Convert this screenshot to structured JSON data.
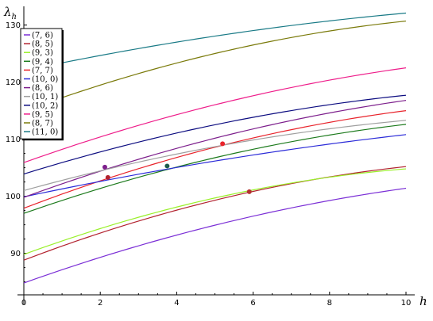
{
  "chart_data": {
    "type": "line",
    "xlabel": "h",
    "ylabel_main": "λ",
    "ylabel_sub": "h",
    "xlim": [
      0,
      10
    ],
    "ylim": [
      83,
      133
    ],
    "x_ticks": [
      0,
      2,
      4,
      6,
      8,
      10
    ],
    "y_ticks": [
      90,
      100,
      110,
      120,
      130
    ],
    "legend_position": "top-left",
    "series": [
      {
        "name": "(7, 6)",
        "color": "#7b2fd6",
        "y0": 84.8,
        "y10": 101.4,
        "curve": 0.22
      },
      {
        "name": "(8, 5)",
        "color": "#b2222e",
        "y0": 88.8,
        "y10": 105.2,
        "curve": 0.28
      },
      {
        "name": "(9, 3)",
        "color": "#9af02a",
        "y0": 89.8,
        "y10": 104.8,
        "curve": 0.32
      },
      {
        "name": "(9, 4)",
        "color": "#1c7a1c",
        "y0": 97.0,
        "y10": 112.6,
        "curve": 0.25
      },
      {
        "name": "(7, 7)",
        "color": "#e8232b",
        "y0": 97.9,
        "y10": 115.0,
        "curve": 0.25
      },
      {
        "name": "(10, 0)",
        "color": "#2b2bd8",
        "y0": 99.9,
        "y10": 110.8,
        "curve": 0.15
      },
      {
        "name": "(8, 6)",
        "color": "#7d1f8c",
        "y0": 99.8,
        "y10": 116.8,
        "curve": 0.22
      },
      {
        "name": "(10, 1)",
        "color": "#a0a0a0",
        "y0": 101.0,
        "y10": 113.3,
        "curve": 0.25
      },
      {
        "name": "(10, 2)",
        "color": "#0c0c80",
        "y0": 103.9,
        "y10": 117.7,
        "curve": 0.25
      },
      {
        "name": "(9, 5)",
        "color": "#ee1d8a",
        "y0": 105.9,
        "y10": 122.5,
        "curve": 0.22
      },
      {
        "name": "(8, 7)",
        "color": "#7a7a0a",
        "y0": 114.9,
        "y10": 130.7,
        "curve": 0.28
      },
      {
        "name": "(11, 0)",
        "color": "#197a86",
        "y0": 122.0,
        "y10": 132.1,
        "curve": 0.2
      }
    ],
    "points": [
      {
        "x": 2.12,
        "y": 105.1,
        "color": "#7d1f8c"
      },
      {
        "x": 2.2,
        "y": 103.3,
        "color": "#b2222e"
      },
      {
        "x": 3.75,
        "y": 105.3,
        "color": "#1c5a4a"
      },
      {
        "x": 5.2,
        "y": 109.2,
        "color": "#e8232b"
      },
      {
        "x": 5.9,
        "y": 100.8,
        "color": "#b2322e"
      }
    ]
  }
}
